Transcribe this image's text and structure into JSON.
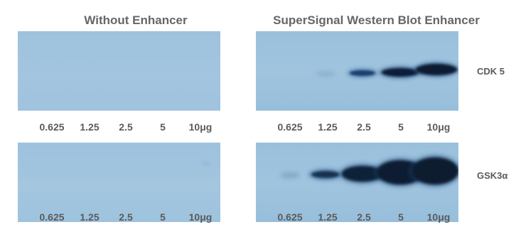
{
  "titles": {
    "left": "Without Enhancer",
    "right": "SuperSignal Western Blot Enhancer"
  },
  "proteins": [
    "CDK 5",
    "GSK3α"
  ],
  "lanes": [
    "0.625",
    "1.25",
    "2.5",
    "5",
    "10μg"
  ],
  "colors": {
    "membrane": "#9fc4de",
    "band": "#0d1d34",
    "label": "#5a5a5a"
  },
  "bands": {
    "cdk5_enhanced": [
      0.0,
      0.1,
      0.55,
      0.9,
      1.0
    ],
    "gsk3a_enhanced": [
      0.1,
      0.6,
      0.95,
      1.0,
      1.0
    ]
  }
}
